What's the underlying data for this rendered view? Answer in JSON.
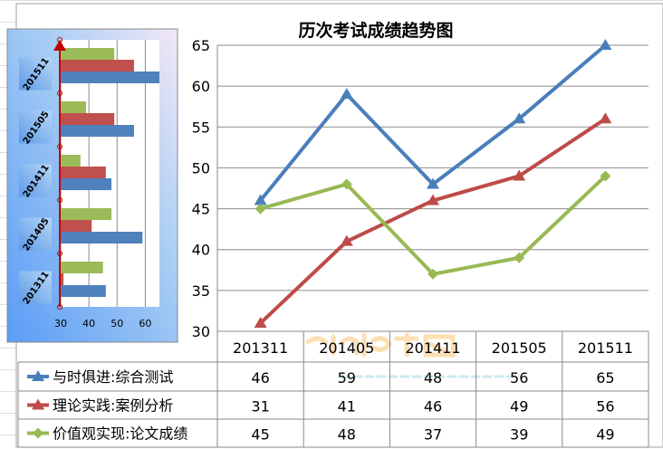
{
  "chart_data": [
    {
      "type": "line",
      "title": "历次考试成绩趋势图",
      "categories": [
        "201311",
        "201405",
        "201411",
        "201505",
        "201511"
      ],
      "ylim": [
        30,
        65
      ],
      "yticks": [
        30,
        35,
        40,
        45,
        50,
        55,
        60,
        65
      ],
      "grid": true,
      "legend": "data-table-bottom",
      "series": [
        {
          "name": "与时俱进:综合测试",
          "values": [
            46,
            59,
            48,
            56,
            65
          ],
          "color": "#4a7ebb",
          "marker": "triangle"
        },
        {
          "name": "理论实践:案例分析",
          "values": [
            31,
            41,
            46,
            49,
            56
          ],
          "color": "#be4b48",
          "marker": "triangle"
        },
        {
          "name": "价值观实现:论文成绩",
          "values": [
            45,
            48,
            37,
            39,
            49
          ],
          "color": "#98b954",
          "marker": "diamond"
        }
      ]
    },
    {
      "type": "bar",
      "orientation": "horizontal",
      "categories": [
        "201311",
        "201405",
        "201411",
        "201505",
        "201511"
      ],
      "xlim": [
        30,
        65
      ],
      "xticks": [
        30,
        40,
        50,
        60
      ],
      "series": [
        {
          "name": "与时俱进:综合测试",
          "values": [
            46,
            59,
            48,
            56,
            65
          ],
          "color": "#4f81bd"
        },
        {
          "name": "理论实践:案例分析",
          "values": [
            31,
            41,
            46,
            49,
            56
          ],
          "color": "#c0504d"
        },
        {
          "name": "价值观实现:论文成绩",
          "values": [
            45,
            48,
            37,
            39,
            49
          ],
          "color": "#9bbb59"
        }
      ]
    }
  ],
  "watermark": {
    "logo": "cnitpm信管网",
    "url": "www.cnitpm.com"
  }
}
